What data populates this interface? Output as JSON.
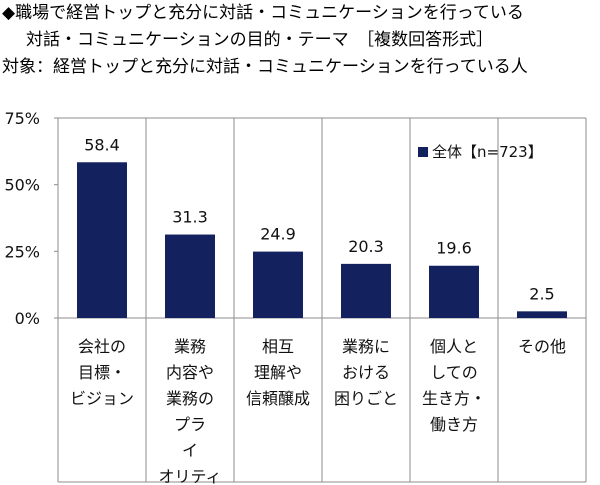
{
  "titles": {
    "line1": "◆職場で経営トップと充分に対話・コミュニケーションを行っている",
    "line2": "対話・コミュニケーションの目的・テーマ　［複数回答形式］",
    "line3": "対象：経営トップと充分に対話・コミュニケーションを行っている人"
  },
  "chart_data": {
    "type": "bar",
    "categories": [
      [
        "会社の",
        "目標・",
        "ビジョン"
      ],
      [
        "業務",
        "内容や",
        "業務の",
        "プラ",
        "イ",
        "オリティ"
      ],
      [
        "相互",
        "理解や",
        "信頼醸成"
      ],
      [
        "業務に",
        "おける",
        "困りごと"
      ],
      [
        "個人と",
        "しての",
        "生き方・",
        "働き方"
      ],
      [
        "その他"
      ]
    ],
    "series": [
      {
        "name": "全体【n=723】",
        "values": [
          58.4,
          31.3,
          24.9,
          20.3,
          19.6,
          2.5
        ],
        "color": "#13225e"
      }
    ],
    "value_labels": [
      "58.4",
      "31.3",
      "24.9",
      "20.3",
      "19.6",
      "2.5"
    ],
    "yticks": [
      "0%",
      "25%",
      "50%",
      "75%"
    ],
    "ylim": [
      0,
      75
    ],
    "grid": false,
    "legend_position": "top-right"
  }
}
